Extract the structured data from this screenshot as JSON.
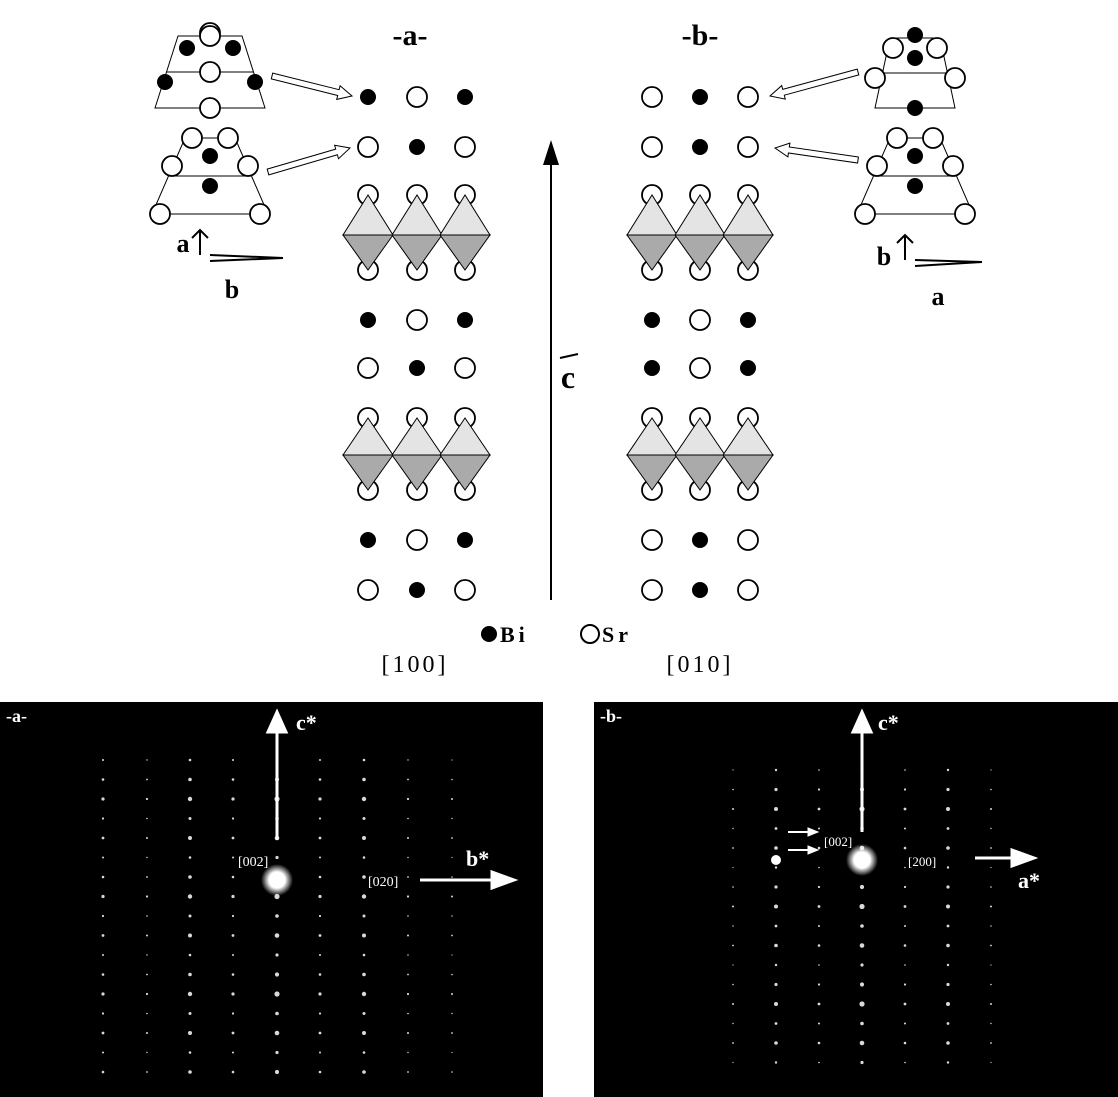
{
  "structure": {
    "panel_a_label": "-a-",
    "panel_b_label": "-b-",
    "c_axis": "c",
    "inset_a_axes": [
      "a",
      "b"
    ],
    "inset_b_axes": [
      "b",
      "a"
    ],
    "legend": [
      "Bi",
      "Sr"
    ],
    "zone_axes": [
      "[100]",
      "[010]"
    ]
  },
  "diffraction": {
    "panel_a": {
      "label": "-a-",
      "vertical_axis": "c*",
      "horizontal_axis": "b*",
      "spots": [
        "[002]",
        "[020]"
      ]
    },
    "panel_b": {
      "label": "-b-",
      "vertical_axis": "c*",
      "horizontal_axis": "a*",
      "spots": [
        "[002]",
        "[200]"
      ]
    }
  }
}
